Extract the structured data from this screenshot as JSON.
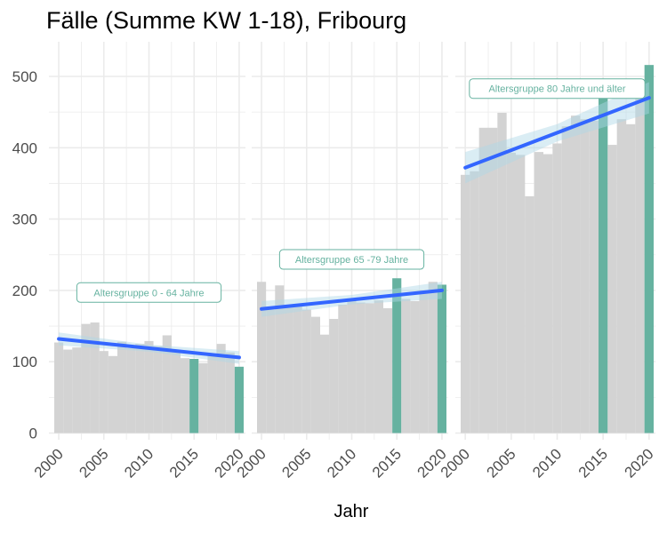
{
  "chart_data": {
    "type": "bar",
    "title": "Fälle (Summe KW 1-18), Fribourg",
    "xlabel": "Jahr",
    "ylabel": "",
    "ylim": [
      0,
      540
    ],
    "yticks": [
      0,
      100,
      200,
      300,
      400,
      500
    ],
    "xticks": [
      2000,
      2005,
      2010,
      2015,
      2020
    ],
    "grid": true,
    "trend": "linear fit with confidence band",
    "colors": {
      "bar": "#d3d3d3",
      "highlight": "#66b2a0",
      "trend_line": "#3366ff",
      "band": "#add8e6",
      "grid": "#ebebeb",
      "annot_border": "#66b2a0"
    },
    "highlight_years": [
      2015,
      2020
    ],
    "panels": [
      {
        "label": "Altersgruppe 0 - 64 Jahre",
        "years": [
          2000,
          2001,
          2002,
          2003,
          2004,
          2005,
          2006,
          2007,
          2008,
          2009,
          2010,
          2011,
          2012,
          2013,
          2014,
          2015,
          2016,
          2017,
          2018,
          2019,
          2020
        ],
        "values": [
          127,
          117,
          120,
          153,
          155,
          115,
          108,
          128,
          119,
          125,
          129,
          122,
          137,
          117,
          105,
          104,
          98,
          108,
          125,
          113,
          93
        ],
        "trend": [
          132,
          106
        ],
        "band_halfwidth": [
          9,
          9
        ]
      },
      {
        "label": "Altersgruppe 65 -79 Jahre",
        "years": [
          2000,
          2001,
          2002,
          2003,
          2004,
          2005,
          2006,
          2007,
          2008,
          2009,
          2010,
          2011,
          2012,
          2013,
          2014,
          2015,
          2016,
          2017,
          2018,
          2019,
          2020
        ],
        "values": [
          212,
          173,
          207,
          178,
          180,
          173,
          163,
          138,
          160,
          180,
          185,
          183,
          182,
          186,
          175,
          217,
          188,
          185,
          200,
          212,
          208
        ],
        "trend": [
          174,
          200
        ],
        "band_halfwidth": [
          11,
          12
        ]
      },
      {
        "label": "Altersgruppe 80 Jahre und älter",
        "years": [
          2000,
          2001,
          2002,
          2003,
          2004,
          2005,
          2006,
          2007,
          2008,
          2009,
          2010,
          2011,
          2012,
          2013,
          2014,
          2015,
          2016,
          2017,
          2018,
          2019,
          2020
        ],
        "values": [
          362,
          367,
          428,
          428,
          449,
          393,
          390,
          332,
          394,
          391,
          406,
          430,
          445,
          440,
          438,
          492,
          404,
          440,
          433,
          480,
          516
        ],
        "trend": [
          372,
          470
        ],
        "band_halfwidth": [
          22,
          22
        ]
      }
    ]
  }
}
